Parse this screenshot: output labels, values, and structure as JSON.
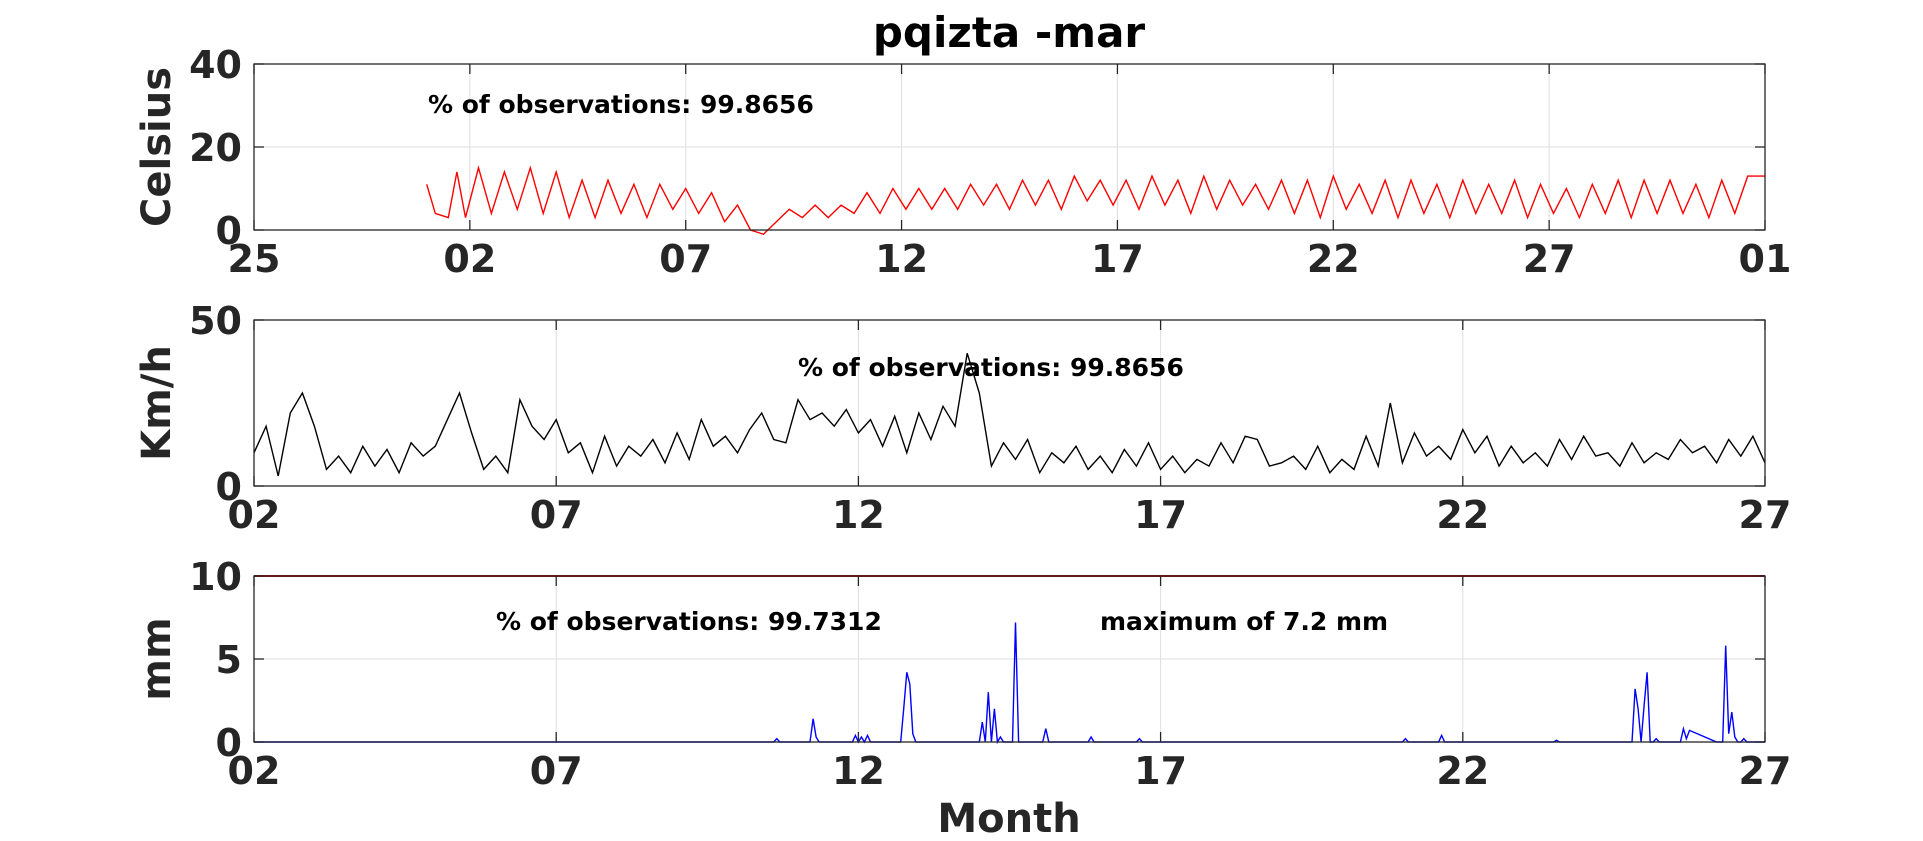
{
  "figure": {
    "title": "pqizta -mar",
    "xlabel": "Month"
  },
  "chart_data": [
    {
      "type": "line",
      "id": "temperature",
      "ylabel": "Celsius",
      "ylim": [
        0,
        40
      ],
      "yticks": [
        0,
        20,
        40
      ],
      "xlim": [
        0,
        35
      ],
      "xticks": [
        0,
        5,
        10,
        15,
        20,
        25,
        30,
        35
      ],
      "xticklabels": [
        "25",
        "02",
        "07",
        "12",
        "17",
        "22",
        "27",
        "01"
      ],
      "grid": true,
      "color": "#ff0000",
      "annotations": [
        "% of observations: 99.8656"
      ],
      "series": [
        {
          "x": [
            4.0,
            4.2,
            4.5,
            4.7,
            4.9,
            5.2,
            5.5,
            5.8,
            6.1,
            6.4,
            6.7,
            7.0,
            7.3,
            7.6,
            7.9,
            8.2,
            8.5,
            8.8,
            9.1,
            9.4,
            9.7,
            10.0,
            10.3,
            10.6,
            10.9,
            11.2,
            11.5,
            11.8,
            12.1,
            12.4,
            12.7,
            13.0,
            13.3,
            13.6,
            13.9,
            14.2,
            14.5,
            14.8,
            15.1,
            15.4,
            15.7,
            16.0,
            16.3,
            16.6,
            16.9,
            17.2,
            17.5,
            17.8,
            18.1,
            18.4,
            18.7,
            19.0,
            19.3,
            19.6,
            19.9,
            20.2,
            20.5,
            20.8,
            21.1,
            21.4,
            21.7,
            22.0,
            22.3,
            22.6,
            22.9,
            23.2,
            23.5,
            23.8,
            24.1,
            24.4,
            24.7,
            25.0,
            25.3,
            25.6,
            25.9,
            26.2,
            26.5,
            26.8,
            27.1,
            27.4,
            27.7,
            28.0,
            28.3,
            28.6,
            28.9,
            29.2,
            29.5,
            29.8,
            30.1,
            30.4,
            30.7,
            31.0,
            31.3,
            31.6,
            31.9,
            32.2,
            32.5,
            32.8,
            33.1,
            33.4,
            33.7,
            34.0,
            34.3,
            34.6,
            35.0
          ],
          "y": [
            11,
            4,
            3,
            14,
            3,
            15,
            4,
            14,
            5,
            15,
            4,
            14,
            3,
            12,
            3,
            12,
            4,
            11,
            3,
            11,
            5,
            10,
            4,
            9,
            2,
            6,
            0,
            -1,
            2,
            5,
            3,
            6,
            3,
            6,
            4,
            9,
            4,
            10,
            5,
            10,
            5,
            10,
            5,
            11,
            6,
            11,
            5,
            12,
            6,
            12,
            5,
            13,
            7,
            12,
            6,
            12,
            5,
            13,
            6,
            12,
            4,
            13,
            5,
            12,
            6,
            11,
            5,
            12,
            4,
            12,
            3,
            13,
            5,
            11,
            4,
            12,
            3,
            12,
            4,
            11,
            3,
            12,
            4,
            11,
            4,
            12,
            3,
            11,
            4,
            10,
            3,
            11,
            4,
            12,
            3,
            12,
            4,
            12,
            4,
            11,
            3,
            12,
            4,
            13,
            13
          ]
        }
      ]
    },
    {
      "type": "line",
      "id": "wind",
      "ylabel": "Km/h",
      "ylim": [
        0,
        50
      ],
      "yticks": [
        0,
        50
      ],
      "xlim": [
        0,
        25
      ],
      "xticks": [
        0,
        5,
        10,
        15,
        20,
        25
      ],
      "xticklabels": [
        "02",
        "07",
        "12",
        "17",
        "22",
        "27"
      ],
      "grid": true,
      "color": "#000000",
      "annotations": [
        "% of observations: 99.8656"
      ],
      "series": [
        {
          "x": [
            0.0,
            0.2,
            0.4,
            0.6,
            0.8,
            1.0,
            1.2,
            1.4,
            1.6,
            1.8,
            2.0,
            2.2,
            2.4,
            2.6,
            2.8,
            3.0,
            3.2,
            3.4,
            3.6,
            3.8,
            4.0,
            4.2,
            4.4,
            4.6,
            4.8,
            5.0,
            5.2,
            5.4,
            5.6,
            5.8,
            6.0,
            6.2,
            6.4,
            6.6,
            6.8,
            7.0,
            7.2,
            7.4,
            7.6,
            7.8,
            8.0,
            8.2,
            8.4,
            8.6,
            8.8,
            9.0,
            9.2,
            9.4,
            9.6,
            9.8,
            10.0,
            10.2,
            10.4,
            10.6,
            10.8,
            11.0,
            11.2,
            11.4,
            11.6,
            11.8,
            12.0,
            12.2,
            12.4,
            12.6,
            12.8,
            13.0,
            13.2,
            13.4,
            13.6,
            13.8,
            14.0,
            14.2,
            14.4,
            14.6,
            14.8,
            15.0,
            15.2,
            15.4,
            15.6,
            15.8,
            16.0,
            16.2,
            16.4,
            16.6,
            16.8,
            17.0,
            17.2,
            17.4,
            17.6,
            17.8,
            18.0,
            18.2,
            18.4,
            18.6,
            18.8,
            19.0,
            19.2,
            19.4,
            19.6,
            19.8,
            20.0,
            20.2,
            20.4,
            20.6,
            20.8,
            21.0,
            21.2,
            21.4,
            21.6,
            21.8,
            22.0,
            22.2,
            22.4,
            22.6,
            22.8,
            23.0,
            23.2,
            23.4,
            23.6,
            23.8,
            24.0,
            24.2,
            24.4,
            24.6,
            24.8,
            25.0
          ],
          "y": [
            10,
            18,
            3,
            22,
            28,
            18,
            5,
            9,
            4,
            12,
            6,
            11,
            4,
            13,
            9,
            12,
            20,
            28,
            16,
            5,
            9,
            4,
            26,
            18,
            14,
            20,
            10,
            13,
            4,
            15,
            6,
            12,
            9,
            14,
            7,
            16,
            8,
            20,
            12,
            15,
            10,
            17,
            22,
            14,
            13,
            26,
            20,
            22,
            18,
            23,
            16,
            20,
            12,
            21,
            10,
            22,
            14,
            24,
            18,
            40,
            28,
            6,
            13,
            8,
            14,
            4,
            10,
            7,
            12,
            5,
            9,
            4,
            11,
            6,
            13,
            5,
            9,
            4,
            8,
            6,
            13,
            7,
            15,
            14,
            6,
            7,
            9,
            5,
            12,
            4,
            8,
            5,
            15,
            6,
            25,
            7,
            16,
            9,
            12,
            8,
            17,
            10,
            15,
            6,
            12,
            7,
            10,
            6,
            14,
            8,
            15,
            9,
            10,
            6,
            13,
            7,
            10,
            8,
            14,
            10,
            12,
            7,
            14,
            9,
            15,
            7
          ]
        }
      ]
    },
    {
      "type": "line",
      "id": "precipitation",
      "ylabel": "mm",
      "ylim": [
        0,
        10
      ],
      "yticks": [
        0,
        5,
        10
      ],
      "xlim": [
        0,
        25
      ],
      "xticks": [
        0,
        5,
        10,
        15,
        20,
        25
      ],
      "xticklabels": [
        "02",
        "07",
        "12",
        "17",
        "22",
        "27"
      ],
      "grid": true,
      "color": "#0000ff",
      "reference_line": {
        "y": 10,
        "color": "#cc0000"
      },
      "annotations": [
        "% of observations: 99.7312",
        "maximum of 7.2 mm"
      ],
      "series": [
        {
          "x": [
            0.0,
            8.6,
            8.65,
            8.7,
            9.2,
            9.25,
            9.3,
            9.35,
            9.4,
            9.9,
            9.95,
            10.0,
            10.05,
            10.1,
            10.15,
            10.2,
            10.25,
            10.3,
            10.7,
            10.75,
            10.8,
            10.85,
            10.9,
            10.95,
            11.0,
            11.05,
            12.0,
            12.05,
            12.1,
            12.15,
            12.2,
            12.25,
            12.3,
            12.35,
            12.4,
            12.45,
            12.5,
            12.55,
            12.6,
            12.65,
            13.0,
            13.05,
            13.1,
            13.15,
            13.2,
            13.25,
            13.3,
            13.35,
            13.8,
            13.85,
            13.9,
            13.95,
            14.0,
            14.6,
            14.65,
            14.7,
            14.75,
            19.0,
            19.05,
            19.1,
            19.6,
            19.65,
            19.7,
            21.5,
            21.55,
            21.6,
            21.65,
            22.0,
            22.05,
            22.1,
            22.8,
            22.85,
            22.9,
            22.95,
            23.0,
            23.05,
            23.1,
            23.15,
            23.2,
            23.25,
            23.3,
            23.35,
            23.6,
            23.65,
            23.7,
            23.75,
            24.2,
            24.25,
            24.3,
            24.35,
            24.4,
            24.45,
            24.5,
            24.55,
            24.6,
            24.65,
            24.7,
            24.75,
            24.8,
            24.85,
            24.9,
            25.0
          ],
          "y": [
            0,
            0,
            0.2,
            0,
            0,
            1.4,
            0.3,
            0,
            0,
            0,
            0.4,
            0,
            0.3,
            0,
            0.4,
            0,
            0,
            0,
            0,
            2.0,
            4.2,
            3.5,
            0.5,
            0,
            0,
            0,
            0,
            1.2,
            0,
            3.0,
            0,
            2.0,
            0,
            0.3,
            0,
            0,
            0,
            0,
            7.2,
            0,
            0,
            0,
            0.8,
            0,
            0,
            0,
            0,
            0,
            0,
            0.3,
            0,
            0,
            0,
            0,
            0.2,
            0,
            0,
            0,
            0.2,
            0,
            0,
            0.4,
            0,
            0,
            0.1,
            0,
            0,
            0,
            0,
            0,
            0,
            3.2,
            2.0,
            0,
            2.2,
            4.2,
            0,
            0,
            0.2,
            0,
            0,
            0,
            0,
            0.8,
            0.2,
            0.7,
            0,
            0,
            0,
            5.8,
            0.5,
            1.8,
            0.3,
            0,
            0,
            0.2,
            0,
            0,
            0,
            0,
            0,
            0
          ]
        }
      ]
    }
  ]
}
